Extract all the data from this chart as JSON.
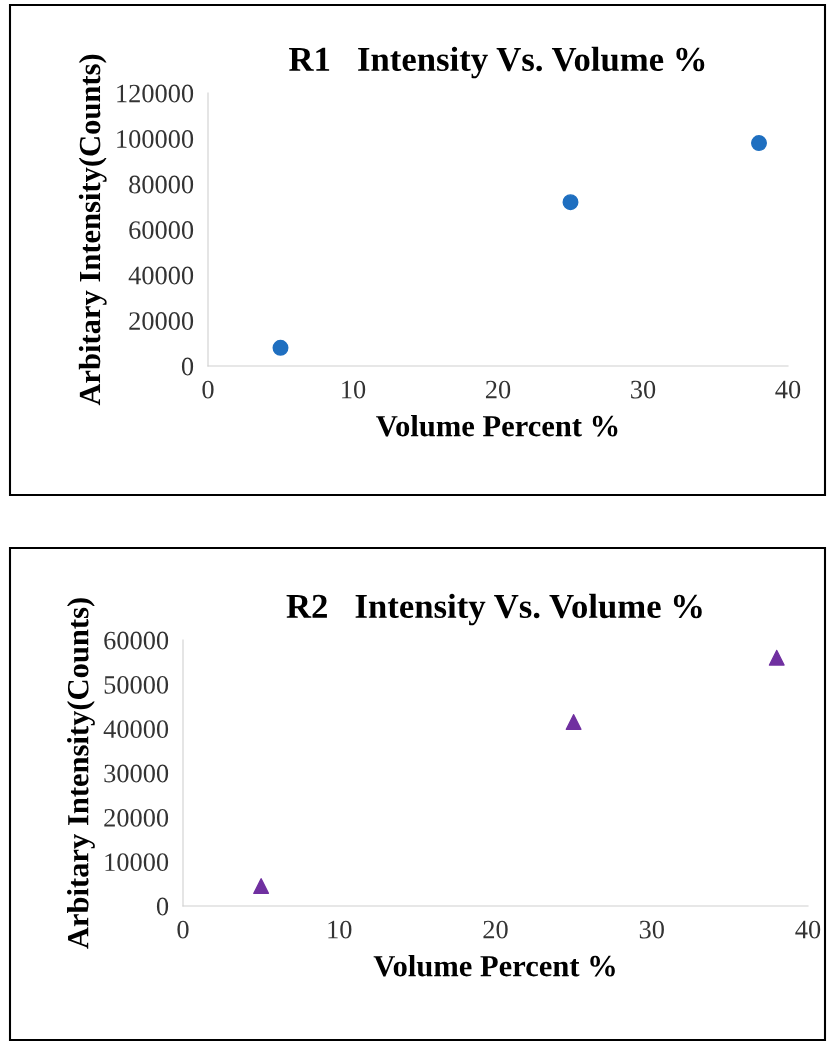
{
  "chart_data": [
    {
      "type": "scatter",
      "title": "R1   Intensity Vs. Volume %",
      "xlabel": "Volume Percent %",
      "ylabel": "Arbitary Intensity(Counts)",
      "marker": "circle",
      "grid": false,
      "legend": false,
      "x": [
        5,
        25,
        38
      ],
      "series": [
        {
          "color": "#1f6fc0",
          "values": [
            8000,
            72000,
            98000
          ]
        }
      ],
      "xlim": [
        0,
        40
      ],
      "xticks": [
        0,
        10,
        20,
        30,
        40
      ],
      "ylim": [
        0,
        120000
      ],
      "yticks": [
        0,
        20000,
        40000,
        60000,
        80000,
        100000,
        120000
      ]
    },
    {
      "type": "scatter",
      "title": "R2   Intensity Vs. Volume %",
      "xlabel": "Volume Percent %",
      "ylabel": "Arbitary Intensity(Counts)",
      "marker": "triangle",
      "grid": false,
      "legend": false,
      "x": [
        5,
        25,
        38
      ],
      "series": [
        {
          "color": "#7030a0",
          "values": [
            4500,
            41500,
            56000
          ]
        }
      ],
      "xlim": [
        0,
        40
      ],
      "xticks": [
        0,
        10,
        20,
        30,
        40
      ],
      "ylim": [
        0,
        60000
      ],
      "yticks": [
        0,
        10000,
        20000,
        30000,
        40000,
        50000,
        60000
      ]
    }
  ]
}
